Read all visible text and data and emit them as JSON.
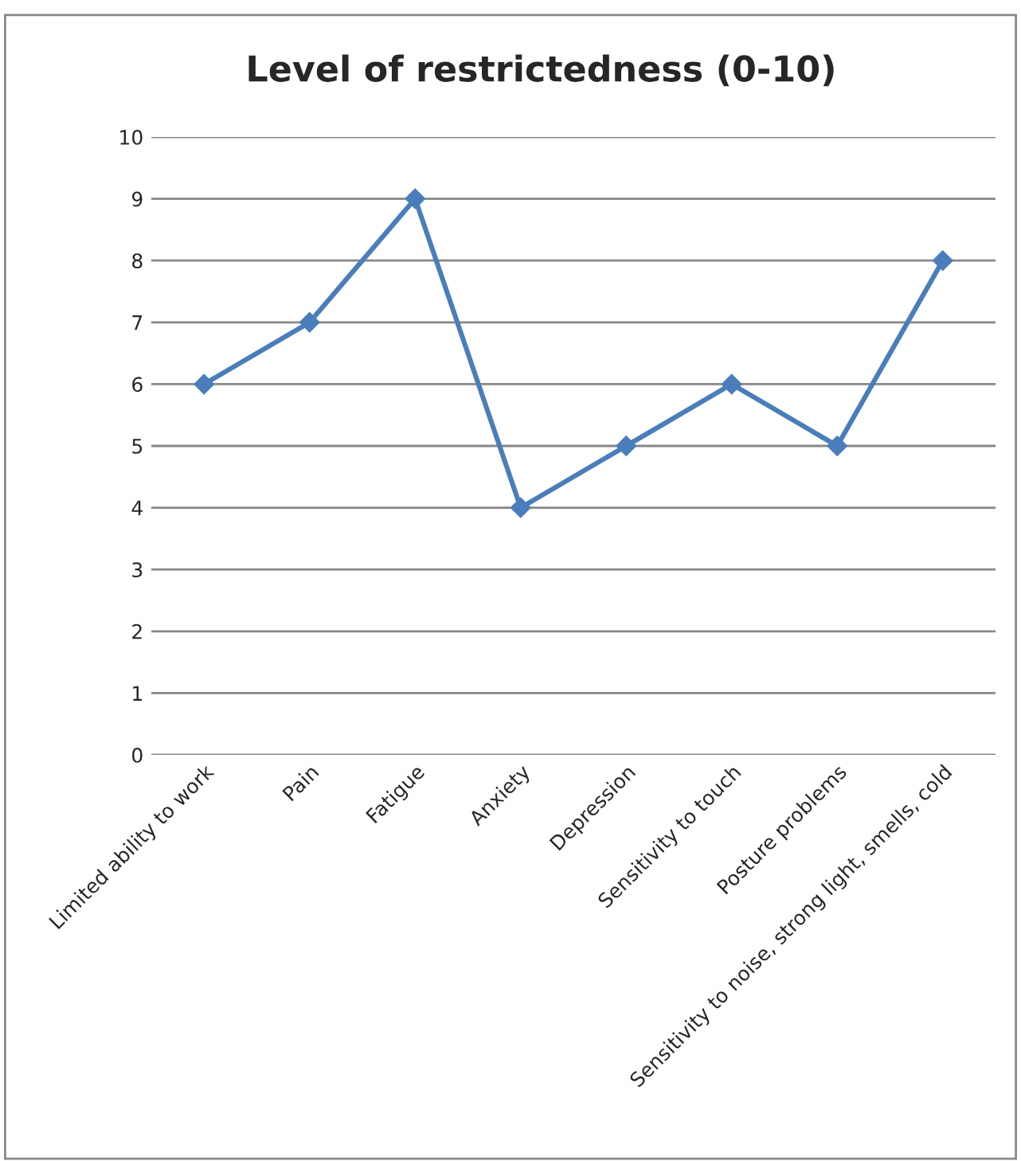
{
  "chart_data": {
    "type": "line",
    "title": "Level of restrictedness (0-10)",
    "categories": [
      "Limited ability to work",
      "Pain",
      "Fatigue",
      "Anxiety",
      "Depression",
      "Sensitivity to touch",
      "Posture problems",
      "Sensitivity to noise, strong light, smells, cold"
    ],
    "series": [
      {
        "color": "#4a7ebb",
        "values": [
          6,
          7,
          9,
          4,
          5,
          6,
          5,
          8
        ]
      }
    ],
    "ylim": [
      0,
      10
    ],
    "yticks": [
      0,
      1,
      2,
      3,
      4,
      5,
      6,
      7,
      8,
      9,
      10
    ],
    "grid": "y",
    "marker": "diamond",
    "line_style": "solid",
    "legend": false
  }
}
